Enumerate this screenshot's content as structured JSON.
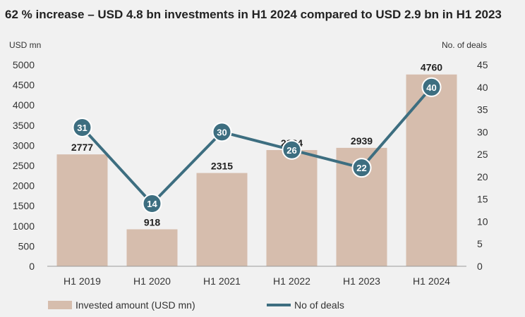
{
  "chart_data": {
    "type": "bar",
    "title": "62 % increase – USD 4.8 bn investments in H1 2024 compared to USD 2.9 bn in H1 2023",
    "y_left_label": "USD mn",
    "y_right_label": "No. of deals",
    "categories": [
      "H1 2019",
      "H1 2020",
      "H1 2021",
      "H1 2022",
      "H1 2023",
      "H1 2024"
    ],
    "ylim": [
      0,
      5000
    ],
    "y_right_lim": [
      0,
      45
    ],
    "y_ticks": [
      "0",
      "500",
      "1000",
      "1500",
      "2000",
      "2500",
      "3000",
      "3500",
      "4000",
      "4500",
      "5000"
    ],
    "y_right_ticks": [
      "0",
      "5",
      "10",
      "15",
      "20",
      "25",
      "30",
      "35",
      "40",
      "45"
    ],
    "legend_position": "bottom",
    "series": [
      {
        "name": "Invested amount (USD mn)",
        "type": "bar",
        "axis": "left",
        "color": "#d6bdad",
        "values": [
          2777,
          918,
          2315,
          2884,
          2939,
          4760
        ],
        "labels": [
          "2777",
          "918",
          "2315",
          "2884",
          "2939",
          "4760"
        ]
      },
      {
        "name": "No of deals",
        "type": "line",
        "axis": "right",
        "color": "#3d6e80",
        "values": [
          31,
          14,
          30,
          26,
          22,
          40
        ],
        "labels": [
          "31",
          "14",
          "30",
          "26",
          "22",
          "40"
        ]
      }
    ]
  }
}
